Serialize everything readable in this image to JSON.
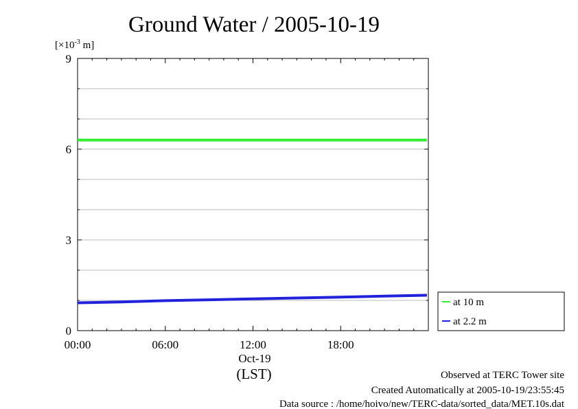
{
  "chart_data": {
    "type": "line",
    "title": "Ground Water / 2005-10-19",
    "unit_prefix": "[×10",
    "unit_exp": "-3",
    "unit_suffix": " m]",
    "ylim": [
      0,
      9
    ],
    "yticks": [
      "0",
      "3",
      "6",
      "9"
    ],
    "xlim": [
      0,
      24
    ],
    "xticks": [
      {
        "x": 0,
        "label": "00:00"
      },
      {
        "x": 6,
        "label": "06:00"
      },
      {
        "x": 12,
        "label": "12:00"
      },
      {
        "x": 18,
        "label": "18:00"
      }
    ],
    "date_label": "Oct-19",
    "xlabel": "(LST)",
    "legend_position": "bottom-right-outside",
    "series": [
      {
        "name": "at 10 m",
        "color": "#33ee33",
        "x": [
          0,
          3,
          6,
          9,
          12,
          15,
          18,
          21,
          23.9
        ],
        "y": [
          6.3,
          6.3,
          6.3,
          6.3,
          6.3,
          6.3,
          6.3,
          6.3,
          6.3
        ]
      },
      {
        "name": "at 2.2 m",
        "color": "#2222dd",
        "x": [
          0,
          3,
          6,
          9,
          12,
          15,
          18,
          21,
          23.9
        ],
        "y": [
          0.92,
          0.95,
          0.99,
          1.02,
          1.05,
          1.08,
          1.11,
          1.14,
          1.17
        ]
      }
    ]
  },
  "footer": {
    "line1": "Observed at TERC Tower site",
    "line2": "Created Automatically at 2005-10-19/23:55:45",
    "line3": "Data source : /home/hoivo/new/TERC-data/sorted_data/MET.10s.dat"
  }
}
